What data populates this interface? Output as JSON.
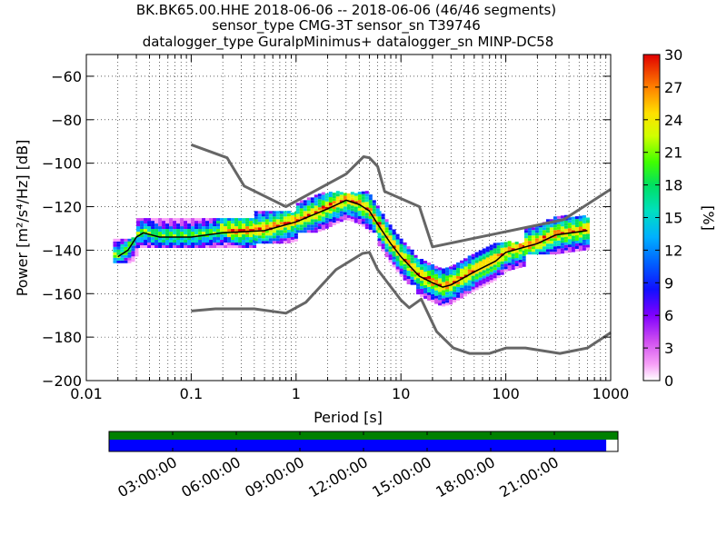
{
  "chart_data": [
    {
      "type": "heatmap",
      "title_lines": [
        "BK.BK65.00.HHE   2018-06-06 -- 2018-06-06  (46/46 segments)",
        "sensor_type CMG-3T sensor_sn T39746",
        "datalogger_type GuralpMinimus+ datalogger_sn MINP-DC58"
      ],
      "xlabel": "Period [s]",
      "ylabel_text": "Power [m²/s⁴/Hz] [dB]",
      "x_scale": "log",
      "xlim": [
        0.01,
        1000
      ],
      "ylim": [
        -200,
        -50
      ],
      "x_ticks": [
        0.01,
        0.1,
        1,
        10,
        100,
        1000
      ],
      "x_tick_labels": [
        "0.01",
        "0.1",
        "1",
        "10",
        "100",
        "1000"
      ],
      "y_ticks": [
        -200,
        -180,
        -160,
        -140,
        -120,
        -100,
        -80,
        -60
      ],
      "y_tick_labels": [
        "−200",
        "−180",
        "−160",
        "−140",
        "−120",
        "−100",
        "−80",
        "−60"
      ],
      "grid": "dotted",
      "colorbar": {
        "label": "[%]",
        "range": [
          0,
          30
        ],
        "ticks": [
          0,
          3,
          6,
          9,
          12,
          15,
          18,
          21,
          24,
          27,
          30
        ],
        "tick_labels": [
          "0",
          "3",
          "6",
          "9",
          "12",
          "15",
          "18",
          "21",
          "24",
          "27",
          "30"
        ]
      },
      "high_noise_model": [
        [
          0.1,
          -91.5
        ],
        [
          0.22,
          -97.5
        ],
        [
          0.32,
          -110.5
        ],
        [
          0.8,
          -120
        ],
        [
          3,
          -105
        ],
        [
          4.4,
          -97
        ],
        [
          5,
          -97.5
        ],
        [
          6,
          -101.5
        ],
        [
          7,
          -113
        ],
        [
          15,
          -120
        ],
        [
          20,
          -138.5
        ],
        [
          354,
          -126
        ],
        [
          1000,
          -112
        ]
      ],
      "low_noise_model": [
        [
          0.1,
          -168
        ],
        [
          0.17,
          -167
        ],
        [
          0.4,
          -167
        ],
        [
          0.8,
          -169
        ],
        [
          1.24,
          -164
        ],
        [
          2.4,
          -149
        ],
        [
          4.3,
          -141.5
        ],
        [
          5,
          -141
        ],
        [
          6,
          -149
        ],
        [
          10,
          -163
        ],
        [
          12,
          -166.5
        ],
        [
          15.6,
          -162.5
        ],
        [
          21.9,
          -177.5
        ],
        [
          31.6,
          -185
        ],
        [
          45,
          -187.5
        ],
        [
          70,
          -187.5
        ],
        [
          101,
          -185
        ],
        [
          154,
          -185
        ],
        [
          328,
          -187.5
        ],
        [
          600,
          -185
        ],
        [
          1000,
          -178
        ]
      ],
      "mode_curve": [
        [
          0.02,
          -143
        ],
        [
          0.025,
          -140
        ],
        [
          0.03,
          -134
        ],
        [
          0.035,
          -132
        ],
        [
          0.05,
          -134
        ],
        [
          0.1,
          -134
        ],
        [
          0.2,
          -132
        ],
        [
          0.5,
          -131
        ],
        [
          1,
          -127
        ],
        [
          2,
          -121
        ],
        [
          3,
          -117
        ],
        [
          4,
          -119
        ],
        [
          5,
          -122
        ],
        [
          6,
          -128
        ],
        [
          8,
          -137
        ],
        [
          10,
          -143
        ],
        [
          15,
          -152
        ],
        [
          20,
          -155
        ],
        [
          25,
          -157
        ],
        [
          30,
          -156
        ],
        [
          50,
          -150
        ],
        [
          80,
          -145
        ],
        [
          100,
          -141
        ],
        [
          200,
          -137
        ],
        [
          300,
          -133
        ],
        [
          600,
          -131
        ]
      ],
      "density_bands": [
        {
          "x": [
            0.018,
            0.03
          ],
          "y": [
            -146,
            -135
          ]
        },
        {
          "x": [
            0.03,
            0.4
          ],
          "y": [
            -139,
            -126
          ]
        },
        {
          "x": [
            0.4,
            1.0
          ],
          "y": [
            -137,
            -123
          ]
        },
        {
          "x": [
            1.0,
            6.0
          ],
          "y": [
            -132,
            -114
          ]
        },
        {
          "x": [
            6.0,
            14.0
          ],
          "y": [
            -156,
            -123
          ]
        },
        {
          "x": [
            14.0,
            40.0
          ],
          "y": [
            -166,
            -145
          ]
        },
        {
          "x": [
            40.0,
            150.0
          ],
          "y": [
            -160,
            -137
          ]
        },
        {
          "x": [
            150.0,
            600.0
          ],
          "y": [
            -142,
            -125
          ]
        }
      ],
      "time_axis": {
        "tick_labels": [
          "03:00:00",
          "06:00:00",
          "09:00:00",
          "12:00:00",
          "15:00:00",
          "18:00:00",
          "21:00:00"
        ],
        "coverage_end_fraction": 0.977,
        "top_bar_color": "#008000",
        "bottom_bar_color": "#0000ff"
      }
    }
  ]
}
